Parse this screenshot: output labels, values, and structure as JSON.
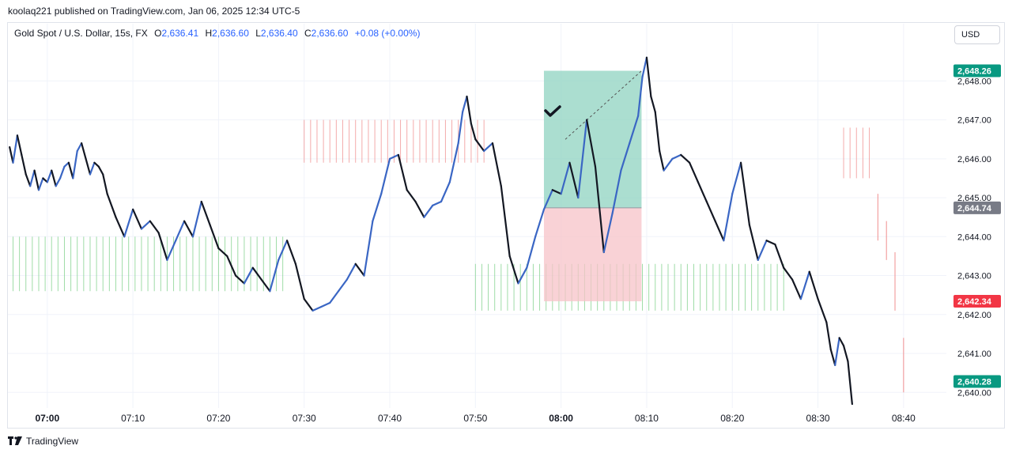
{
  "header": {
    "publisher_line": "koolaq221 published on TradingView.com, Jan 06, 2025 12:34 UTC-5"
  },
  "legend": {
    "symbol": "Gold Spot / U.S. Dollar, 15s, FX",
    "open_label": "O",
    "open": "2,636.41",
    "high_label": "H",
    "high": "2,636.60",
    "low_label": "L",
    "low": "2,636.40",
    "close_label": "C",
    "close": "2,636.60",
    "change": "+0.08 (+0.00%)"
  },
  "currency_button": {
    "label": "USD"
  },
  "footer": {
    "brand": "TradingView",
    "logo_icon": "tradingview-logo-icon"
  },
  "colors": {
    "up": "#3a66c4",
    "down": "#131722",
    "profit_zone": "#8fd3c0",
    "loss_zone": "#f7c3c8",
    "green_tag": "#089981",
    "red_tag": "#f23645",
    "gray_tag": "#787b86",
    "green_hatch": "#7fd18a",
    "red_hatch": "#f08f8f"
  },
  "chart_data": {
    "type": "line",
    "title": "",
    "xlabel": "",
    "ylabel": "",
    "ylim": [
      2639.6,
      2648.9
    ],
    "y_ticks": [
      "2,640.00",
      "2,641.00",
      "2,642.00",
      "2,643.00",
      "2,644.00",
      "2,645.00",
      "2,646.00",
      "2,647.00",
      "2,648.00"
    ],
    "y_tick_values": [
      2640,
      2641,
      2642,
      2643,
      2644,
      2645,
      2646,
      2647,
      2648
    ],
    "x_ticks": [
      "07:00",
      "07:10",
      "07:20",
      "07:30",
      "07:40",
      "07:50",
      "08:00",
      "08:10",
      "08:20",
      "08:30",
      "08:40"
    ],
    "x_tick_minutes": [
      0,
      10,
      20,
      30,
      40,
      50,
      60,
      70,
      80,
      90,
      100
    ],
    "x_bold_ticks": [
      "07:00",
      "08:00"
    ],
    "xlim_minutes": [
      -4.6,
      105
    ],
    "series": [
      {
        "x_minutes": [
          -4.4,
          -4.0,
          -3.5,
          -3.0,
          -2.5,
          -2.0,
          -1.5,
          -1.0,
          -0.5,
          0.0,
          0.5,
          1.0,
          1.5,
          2.0,
          2.5,
          3.0,
          3.5,
          4.0,
          4.5,
          5.0,
          5.5,
          6.0,
          6.5,
          7.0,
          8.0,
          9.0,
          10.0,
          11.0,
          12.0,
          13.0,
          14.0,
          15.0,
          16.0,
          17.0,
          18.0,
          19.0,
          20.0,
          21.0,
          22.0,
          23.0,
          24.0,
          25.0,
          26.0,
          27.0,
          28.0,
          29.0,
          30.0,
          31.0,
          32.0,
          33.0,
          34.0,
          35.0,
          36.0,
          37.0,
          38.0,
          39.0,
          40.0,
          41.0,
          42.0,
          43.0,
          44.0,
          45.0,
          46.0,
          47.0,
          48.0,
          48.5,
          49.0,
          49.5,
          50.0,
          51.0,
          52.0,
          53.0,
          54.0,
          55.0,
          56.0,
          57.0,
          58.0,
          59.0,
          60.0,
          61.0,
          62.0,
          63.0,
          64.0,
          65.0,
          66.0,
          67.0,
          68.0,
          69.0,
          69.5,
          70.0,
          70.5,
          71.0,
          71.5,
          72.0,
          73.0,
          74.0,
          75.0,
          76.0,
          77.0,
          78.0,
          79.0,
          80.0,
          81.0,
          82.0,
          83.0,
          84.0,
          85.0,
          86.0,
          87.0,
          88.0,
          89.0,
          90.0,
          91.0,
          91.5,
          92.0,
          92.5,
          93.0,
          93.5,
          94.0
        ],
        "values": [
          2646.3,
          2645.9,
          2646.6,
          2646.1,
          2645.6,
          2645.3,
          2645.7,
          2645.2,
          2645.5,
          2645.4,
          2645.7,
          2645.3,
          2645.5,
          2645.8,
          2645.9,
          2645.5,
          2646.2,
          2646.4,
          2646.0,
          2645.6,
          2645.9,
          2645.8,
          2645.6,
          2645.1,
          2644.5,
          2644.0,
          2644.7,
          2644.2,
          2644.4,
          2644.1,
          2643.4,
          2643.9,
          2644.4,
          2644.0,
          2644.9,
          2644.3,
          2643.7,
          2643.5,
          2643.0,
          2642.8,
          2643.2,
          2642.9,
          2642.6,
          2643.4,
          2643.9,
          2643.3,
          2642.4,
          2642.1,
          2642.2,
          2642.3,
          2642.6,
          2642.9,
          2643.3,
          2643.0,
          2644.4,
          2645.1,
          2646.0,
          2646.1,
          2645.2,
          2644.9,
          2644.5,
          2644.8,
          2644.9,
          2645.4,
          2646.4,
          2647.2,
          2647.6,
          2646.9,
          2646.5,
          2646.2,
          2646.4,
          2645.3,
          2643.5,
          2642.8,
          2643.2,
          2644.0,
          2644.7,
          2645.2,
          2645.1,
          2645.9,
          2645.0,
          2647.0,
          2645.8,
          2643.6,
          2644.6,
          2645.7,
          2646.4,
          2647.1,
          2648.1,
          2648.6,
          2647.6,
          2647.2,
          2646.2,
          2645.7,
          2646.0,
          2646.1,
          2645.9,
          2645.4,
          2644.9,
          2644.4,
          2643.9,
          2645.1,
          2645.9,
          2644.3,
          2643.4,
          2643.9,
          2643.8,
          2643.2,
          2642.9,
          2642.4,
          2643.1,
          2642.4,
          2641.8,
          2641.1,
          2640.7,
          2641.4,
          2641.2,
          2640.8,
          2639.7
        ]
      }
    ],
    "position": {
      "start_minute": 58.0,
      "end_minute": 69.4,
      "target": 2648.26,
      "entry": 2644.74,
      "stop": 2642.34,
      "target_label": "2,648.26",
      "entry_label": "2,644.74",
      "stop_label": "2,642.34",
      "checkmark_icon": "checkmark-icon"
    },
    "last_price_tag": {
      "value": 2640.28,
      "label": "2,640.28"
    },
    "hatch_zones": [
      {
        "kind": "green",
        "x_start": -4.0,
        "x_end": 28.0,
        "y_top": 2644.0,
        "y_bottom": 2642.6
      },
      {
        "kind": "red",
        "x_start": 30.0,
        "x_end": 51.0,
        "y_top": 2647.0,
        "y_bottom": 2645.9
      },
      {
        "kind": "green",
        "x_start": 50.0,
        "x_end": 86.0,
        "y_top": 2643.3,
        "y_bottom": 2642.1
      },
      {
        "kind": "red",
        "x_start": 93.0,
        "x_end": 96.0,
        "y_top": 2646.8,
        "y_bottom": 2645.5
      }
    ],
    "red_wicks": [
      {
        "x": 97.0,
        "y_top": 2645.1,
        "y_bottom": 2643.9
      },
      {
        "x": 98.0,
        "y_top": 2644.4,
        "y_bottom": 2643.4
      },
      {
        "x": 99.0,
        "y_top": 2643.6,
        "y_bottom": 2642.1
      },
      {
        "x": 100.0,
        "y_top": 2641.4,
        "y_bottom": 2640.0
      }
    ],
    "grid": true,
    "legend_position": "top-left"
  }
}
